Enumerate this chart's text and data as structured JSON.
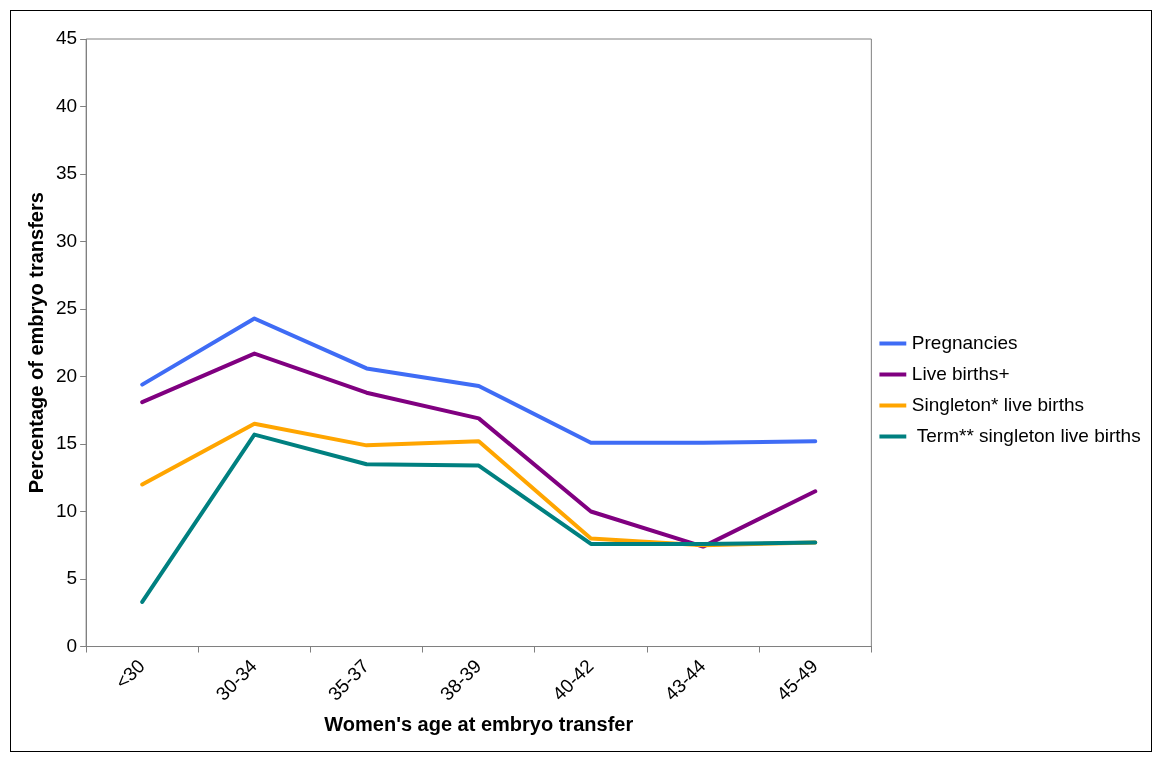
{
  "chart_data": {
    "type": "line",
    "categories": [
      "<30",
      "30-34",
      "35-37",
      "38-39",
      "40-42",
      "43-44",
      "45-49"
    ],
    "xlabel": "Women's age at embryo transfer",
    "ylabel": "Percentage of embryo transfers",
    "ylim": [
      0,
      45
    ],
    "yticks": [
      0,
      5,
      10,
      15,
      20,
      25,
      30,
      35,
      40,
      45
    ],
    "grid": false,
    "legend": "right",
    "marker": "none",
    "line_style": "solid",
    "series": [
      {
        "name": "Pregnancies",
        "color": "#3f6cf5",
        "values": [
          19.4,
          24.3,
          20.6,
          19.3,
          15.1,
          15.1,
          15.2
        ]
      },
      {
        "name": "Live births+",
        "color": "#800080",
        "values": [
          18.1,
          21.7,
          18.8,
          16.9,
          10.0,
          7.4,
          11.5
        ]
      },
      {
        "name": "Singleton* live births",
        "color": "#ffa500",
        "values": [
          12.0,
          16.5,
          14.9,
          15.2,
          8.0,
          7.5,
          7.7
        ]
      },
      {
        "name": " Term** singleton live births",
        "color": "#008080",
        "values": [
          3.3,
          15.7,
          13.5,
          13.4,
          7.6,
          7.6,
          7.7
        ]
      }
    ]
  }
}
